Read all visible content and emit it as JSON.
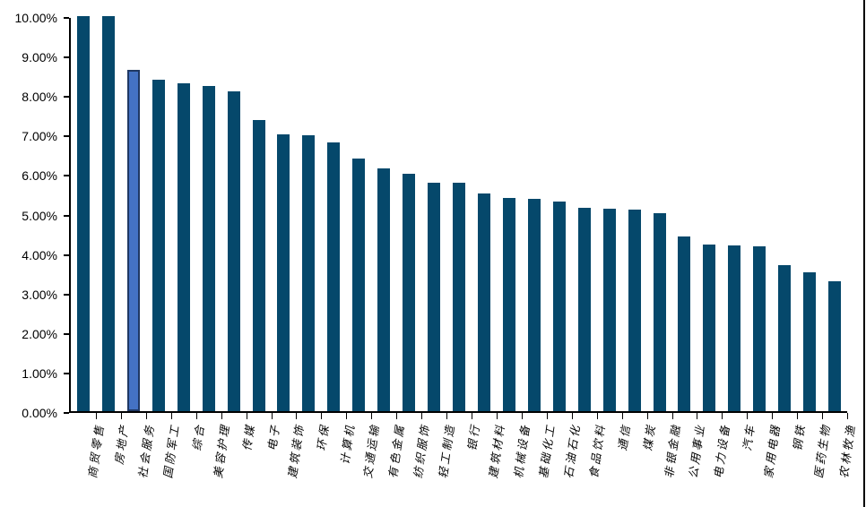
{
  "frame": {
    "background_color": "#ffffff",
    "right_border_color": "#000000"
  },
  "chart_data": {
    "type": "bar",
    "title": "",
    "xlabel": "",
    "ylabel": "",
    "unit": "%",
    "ylim": [
      0,
      10
    ],
    "ytick_step": 1,
    "ytick_labels": [
      "0.00%",
      "1.00%",
      "2.00%",
      "3.00%",
      "4.00%",
      "5.00%",
      "6.00%",
      "7.00%",
      "8.00%",
      "9.00%",
      "10.00%"
    ],
    "grid": "off",
    "legend_position": "none",
    "highlight_index": 2,
    "categories": [
      "商贸零售",
      "房地产",
      "社会服务",
      "国防军工",
      "综合",
      "美容护理",
      "传媒",
      "电子",
      "建筑装饰",
      "环保",
      "计算机",
      "交通运输",
      "有色金属",
      "纺织服饰",
      "轻工制造",
      "银行",
      "建筑材料",
      "机械设备",
      "基础化工",
      "石油石化",
      "食品饮料",
      "通信",
      "煤炭",
      "非银金融",
      "公用事业",
      "电力设备",
      "汽车",
      "家用电器",
      "钢铁",
      "医药生物",
      "农林牧渔"
    ],
    "values": [
      10.0,
      10.0,
      8.65,
      8.38,
      8.3,
      8.23,
      8.1,
      7.37,
      7.0,
      6.99,
      6.81,
      6.4,
      6.15,
      6.01,
      5.79,
      5.78,
      5.51,
      5.4,
      5.37,
      5.31,
      5.15,
      5.13,
      5.1,
      5.01,
      4.42,
      4.21,
      4.2,
      4.18,
      3.7,
      3.52,
      3.28
    ],
    "colors": {
      "bar": "#05486B",
      "highlight_fill": "#4472C4",
      "highlight_border": "#1F3864",
      "axis": "#000000",
      "tick_label": "#000000"
    }
  }
}
